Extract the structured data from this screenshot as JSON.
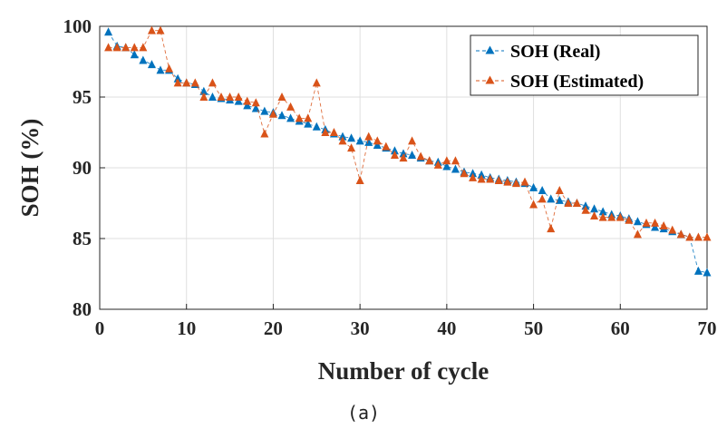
{
  "chart_data": {
    "type": "line",
    "xlabel": "Number of cycle",
    "ylabel": "SOH (%)",
    "caption": "(a)",
    "xlim": [
      0,
      70
    ],
    "ylim": [
      80,
      100
    ],
    "xticks": [
      0,
      10,
      20,
      30,
      40,
      50,
      60,
      70
    ],
    "yticks": [
      80,
      85,
      90,
      95,
      100
    ],
    "grid": true,
    "legend_position": "top-right",
    "x": [
      1,
      2,
      3,
      4,
      5,
      6,
      7,
      8,
      9,
      10,
      11,
      12,
      13,
      14,
      15,
      16,
      17,
      18,
      19,
      20,
      21,
      22,
      23,
      24,
      25,
      26,
      27,
      28,
      29,
      30,
      31,
      32,
      33,
      34,
      35,
      36,
      37,
      38,
      39,
      40,
      41,
      42,
      43,
      44,
      45,
      46,
      47,
      48,
      49,
      50,
      51,
      52,
      53,
      54,
      55,
      56,
      57,
      58,
      59,
      60,
      61,
      62,
      63,
      64,
      65,
      66,
      67,
      68,
      69,
      70
    ],
    "series": [
      {
        "name": "SOH (Real)",
        "color": "#0072BD",
        "values": [
          99.6,
          98.6,
          98.5,
          98.0,
          97.6,
          97.3,
          96.9,
          96.9,
          96.3,
          96.0,
          95.9,
          95.4,
          95.0,
          94.9,
          94.8,
          94.7,
          94.4,
          94.2,
          94.0,
          93.9,
          93.7,
          93.5,
          93.3,
          93.1,
          92.9,
          92.7,
          92.4,
          92.2,
          92.1,
          91.9,
          91.8,
          91.6,
          91.4,
          91.2,
          91.0,
          90.9,
          90.7,
          90.5,
          90.4,
          90.1,
          89.9,
          89.7,
          89.6,
          89.5,
          89.3,
          89.2,
          89.1,
          89.0,
          88.9,
          88.6,
          88.4,
          87.8,
          87.7,
          87.6,
          87.5,
          87.3,
          87.1,
          86.9,
          86.7,
          86.6,
          86.4,
          86.2,
          86.0,
          85.8,
          85.7,
          85.5,
          85.3,
          85.1,
          82.7,
          82.6
        ]
      },
      {
        "name": "SOH (Estimated)",
        "color": "#D95319",
        "values": [
          98.5,
          98.5,
          98.5,
          98.5,
          98.5,
          99.7,
          99.7,
          97.0,
          96.0,
          96.0,
          96.0,
          95.0,
          96.0,
          95.0,
          95.0,
          95.0,
          94.7,
          94.6,
          92.4,
          93.8,
          95.0,
          94.3,
          93.5,
          93.5,
          96.0,
          92.5,
          92.5,
          91.9,
          91.4,
          89.1,
          92.2,
          91.9,
          91.5,
          90.9,
          90.7,
          91.9,
          90.8,
          90.5,
          90.2,
          90.5,
          90.5,
          89.6,
          89.3,
          89.2,
          89.2,
          89.1,
          89.0,
          88.9,
          89.0,
          87.4,
          87.8,
          85.7,
          88.4,
          87.5,
          87.5,
          87.0,
          86.6,
          86.5,
          86.5,
          86.5,
          86.3,
          85.3,
          86.1,
          86.1,
          85.9,
          85.6,
          85.3,
          85.1,
          85.1,
          85.1
        ]
      }
    ]
  }
}
